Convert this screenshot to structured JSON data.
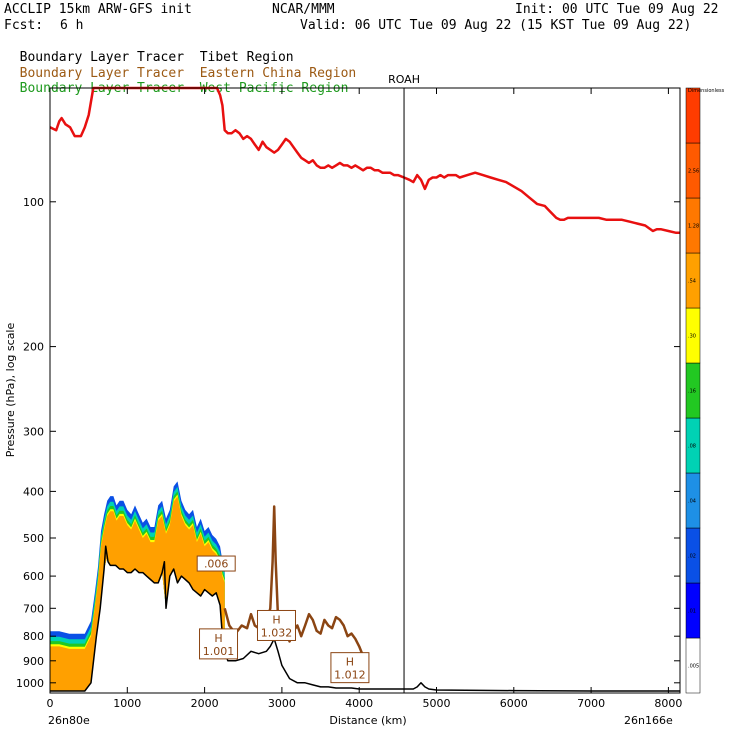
{
  "header": {
    "model": "ACCLIP 15km ARW-GFS init",
    "center": "NCAR/MMM",
    "init": "Init: 00 UTC Tue 09 Aug 22",
    "fcst_label": "Fcst:",
    "fcst_value": "6 h",
    "valid": "Valid: 06 UTC Tue 09 Aug 22 (15 KST Tue 09 Aug 22)",
    "legend": [
      {
        "left": "Boundary Layer Tracer",
        "right": "Tibet Region",
        "color": "#000000"
      },
      {
        "left": "Boundary Layer Tracer",
        "right": "Eastern China Region",
        "color": "#9c5a14"
      },
      {
        "left": "Boundary Layer Tracer",
        "right": "West Pacific Region",
        "color": "#1e9a1e"
      }
    ]
  },
  "chart_data": {
    "type": "area",
    "xlabel": "Distance (km)",
    "ylabel": "Pressure (hPa), log scale",
    "y_scale": "log",
    "xlim": [
      0,
      8150
    ],
    "ylim": [
      1050,
      58
    ],
    "x_ticks": [
      0,
      1000,
      2000,
      3000,
      4000,
      5000,
      6000,
      7000,
      8000
    ],
    "y_ticks": [
      100,
      200,
      300,
      400,
      500,
      600,
      700,
      800,
      900,
      1000
    ],
    "x_start_label": "26n80e",
    "x_end_label": "26n166e",
    "marker": {
      "label": "ROAH",
      "x": 4580
    },
    "colorbar": {
      "labels": [
        ".005",
        ".01",
        ".02",
        ".04",
        ".08",
        ".16",
        ".30",
        ".54",
        "1.28",
        "2.56",
        "Dimensionless"
      ],
      "colors": [
        "#ffffff",
        "#0000ff",
        "#0a50e6",
        "#1e90e6",
        "#00d2b4",
        "#22c822",
        "#ffff00",
        "#ffa000",
        "#ff7800",
        "#ff5a00",
        "#ff3c00"
      ]
    },
    "series": [
      {
        "name": "tropopause",
        "color": "#e81010",
        "x": [
          0,
          80,
          120,
          150,
          200,
          260,
          320,
          400,
          450,
          500,
          560,
          600,
          620,
          640,
          660,
          680,
          700,
          730,
          780,
          830,
          880,
          940,
          1000,
          1050,
          1100,
          1180,
          1260,
          1340,
          1430,
          1480,
          1550,
          1600,
          1700,
          1800,
          1900,
          2000,
          2100,
          2160,
          2200,
          2230,
          2260,
          2300,
          2350,
          2400,
          2450,
          2500,
          2550,
          2600,
          2650,
          2700,
          2750,
          2800,
          2850,
          2900,
          2950,
          3000,
          3050,
          3100,
          3150,
          3200,
          3250,
          3300,
          3350,
          3400,
          3450,
          3500,
          3550,
          3600,
          3650,
          3700,
          3750,
          3800,
          3850,
          3900,
          3950,
          4000,
          4050,
          4100,
          4150,
          4200,
          4250,
          4300,
          4350,
          4400,
          4450,
          4500,
          4580,
          4650,
          4700,
          4750,
          4800,
          4850,
          4900,
          4950,
          5000,
          5050,
          5100,
          5150,
          5200,
          5250,
          5300,
          5400,
          5500,
          5600,
          5700,
          5800,
          5900,
          6000,
          6100,
          6200,
          6300,
          6400,
          6450,
          6500,
          6550,
          6600,
          6650,
          6700,
          6800,
          6900,
          7000,
          7100,
          7200,
          7300,
          7400,
          7500,
          7600,
          7700,
          7800,
          7850,
          7900,
          8000,
          8100,
          8150
        ],
        "y": [
          70,
          71,
          68,
          67,
          69,
          70,
          73,
          73,
          70,
          66,
          58,
          58,
          58,
          58,
          58,
          58,
          58,
          58,
          58,
          58,
          58,
          58,
          58,
          58,
          58,
          58,
          58,
          58,
          58,
          58,
          58,
          58,
          58,
          58,
          58,
          58,
          58,
          58,
          60,
          63,
          71,
          72,
          72,
          71,
          72,
          74,
          73,
          74,
          76,
          78,
          75,
          77,
          78,
          79,
          78,
          76,
          74,
          75,
          77,
          79,
          81,
          82,
          83,
          82,
          84,
          85,
          85,
          84,
          85,
          84,
          83,
          84,
          84,
          85,
          84,
          85,
          86,
          85,
          85,
          86,
          86,
          87,
          87,
          87,
          88,
          88,
          89,
          90,
          91,
          88,
          90,
          94,
          90,
          89,
          89,
          88,
          89,
          88,
          88,
          88,
          89,
          88,
          87,
          88,
          89,
          90,
          91,
          93,
          95,
          98,
          101,
          102,
          104,
          106,
          108,
          109,
          109,
          108,
          108,
          108,
          108,
          108,
          109,
          109,
          109,
          110,
          111,
          112,
          115,
          114,
          114,
          115,
          116,
          116
        ]
      },
      {
        "name": "terrain",
        "color": "#000000",
        "x": [
          0,
          120,
          250,
          350,
          450,
          530,
          600,
          650,
          700,
          720,
          750,
          780,
          810,
          850,
          900,
          950,
          1000,
          1050,
          1100,
          1150,
          1200,
          1250,
          1300,
          1350,
          1400,
          1450,
          1480,
          1500,
          1550,
          1600,
          1650,
          1700,
          1750,
          1800,
          1850,
          1900,
          1950,
          2000,
          2050,
          2100,
          2150,
          2200,
          2230,
          2260,
          2300,
          2400,
          2500,
          2600,
          2700,
          2800,
          2850,
          2900,
          2950,
          3000,
          3050,
          3100,
          3200,
          3300,
          3400,
          3500,
          3600,
          3700,
          3800,
          3900,
          4000,
          4200,
          4400,
          4600,
          4700,
          4750,
          4800,
          4850,
          4900,
          5000,
          6000,
          7000,
          8000,
          8150
        ],
        "y": [
          1040,
          1040,
          1040,
          1040,
          1040,
          1000,
          800,
          700,
          580,
          520,
          560,
          570,
          570,
          570,
          580,
          580,
          590,
          590,
          580,
          590,
          590,
          600,
          610,
          620,
          620,
          590,
          560,
          700,
          600,
          580,
          620,
          600,
          610,
          620,
          640,
          650,
          660,
          640,
          650,
          660,
          650,
          690,
          800,
          860,
          900,
          900,
          890,
          860,
          870,
          860,
          840,
          810,
          860,
          920,
          950,
          980,
          1000,
          1000,
          1010,
          1020,
          1020,
          1025,
          1025,
          1025,
          1030,
          1030,
          1030,
          1030,
          1030,
          1020,
          1000,
          1020,
          1030,
          1035,
          1038,
          1040,
          1040,
          1040
        ]
      },
      {
        "name": "tibet_tracer_top",
        "color": "#ff8c00",
        "x": [
          0,
          120,
          250,
          350,
          450,
          530,
          580,
          620,
          660,
          700,
          740,
          780,
          820,
          860,
          900,
          950,
          1000,
          1050,
          1100,
          1150,
          1200,
          1250,
          1300,
          1350,
          1400,
          1450,
          1500,
          1550,
          1600,
          1650,
          1700,
          1750,
          1800,
          1850,
          1900,
          1950,
          2000,
          2050,
          2100,
          2150,
          2200,
          2230,
          2260
        ],
        "y": [
          840,
          840,
          850,
          850,
          850,
          800,
          700,
          620,
          520,
          480,
          450,
          440,
          440,
          460,
          450,
          450,
          470,
          480,
          460,
          480,
          500,
          490,
          510,
          510,
          460,
          450,
          490,
          470,
          420,
          410,
          450,
          470,
          480,
          470,
          510,
          490,
          520,
          510,
          530,
          540,
          560,
          600,
          620
        ]
      },
      {
        "name": "eastchina_tracer",
        "color": "#8b4513",
        "x": [
          2260,
          2320,
          2400,
          2480,
          2550,
          2600,
          2650,
          2700,
          2750,
          2800,
          2850,
          2880,
          2900,
          2920,
          2950,
          2980,
          3000,
          3050,
          3100,
          3150,
          3200,
          3250,
          3300,
          3350,
          3400,
          3450,
          3500,
          3550,
          3600,
          3650,
          3700,
          3750,
          3800,
          3850,
          3900,
          3950,
          4000,
          4050,
          4100
        ],
        "y": [
          700,
          760,
          790,
          760,
          770,
          720,
          760,
          770,
          740,
          750,
          700,
          560,
          430,
          560,
          730,
          800,
          780,
          790,
          820,
          780,
          760,
          800,
          760,
          720,
          740,
          780,
          790,
          740,
          760,
          770,
          730,
          740,
          760,
          800,
          790,
          810,
          840,
          880,
          930
        ]
      }
    ],
    "annotations": [
      {
        "text": "H",
        "value": "1.001",
        "x": 2180,
        "y": 830
      },
      {
        "text": "H",
        "value": "1.032",
        "x": 2930,
        "y": 760
      },
      {
        "text": "H",
        "value": "1.012",
        "x": 3880,
        "y": 930
      },
      {
        "text": ".006",
        "value": "",
        "x": 2150,
        "y": 565
      }
    ]
  }
}
